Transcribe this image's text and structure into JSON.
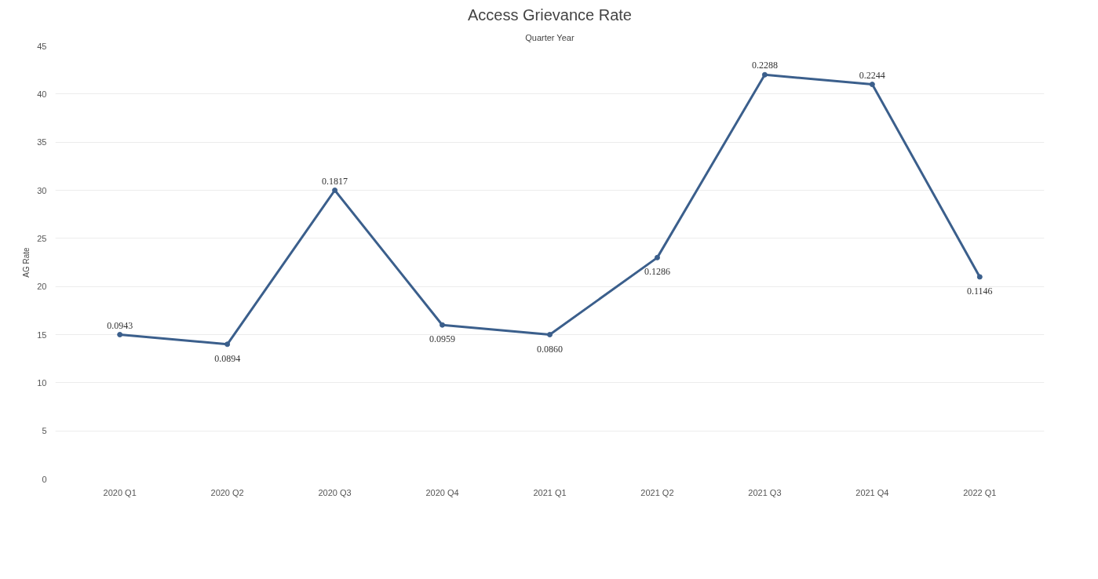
{
  "chart_data": {
    "type": "line",
    "title": "Access Grievance Rate",
    "xlabel": "Quarter Year",
    "ylabel": "AG Rate",
    "categories": [
      "2020 Q1",
      "2020 Q2",
      "2020 Q3",
      "2020 Q4",
      "2021 Q1",
      "2021 Q2",
      "2021 Q3",
      "2021 Q4",
      "2022 Q1"
    ],
    "series": [
      {
        "color": "#3b5f8c",
        "values": [
          15,
          14,
          30,
          16,
          15,
          23,
          42,
          41,
          21
        ]
      }
    ],
    "annotations": [
      {
        "text": "0.0943",
        "x": "2020 Q1",
        "y": 15
      },
      {
        "text": "0.0894",
        "x": "2020 Q2",
        "y": 14
      },
      {
        "text": "0.1817",
        "x": "2020 Q3",
        "y": 30
      },
      {
        "text": "0.0959",
        "x": "2020 Q4",
        "y": 16
      },
      {
        "text": "0.0860",
        "x": "2021 Q1",
        "y": 15
      },
      {
        "text": "0.1286",
        "x": "2021 Q2",
        "y": 23
      },
      {
        "text": "0.2288",
        "x": "2021 Q3",
        "y": 42
      },
      {
        "text": "0.2244",
        "x": "2021 Q4",
        "y": 41
      },
      {
        "text": "0.1146",
        "x": "2022 Q1",
        "y": 21
      }
    ],
    "ylim": [
      0,
      45
    ],
    "yticks": [
      0,
      5,
      10,
      15,
      20,
      25,
      30,
      35,
      40,
      45
    ],
    "grid": "y",
    "marker": "circle",
    "line_style": "solid"
  }
}
